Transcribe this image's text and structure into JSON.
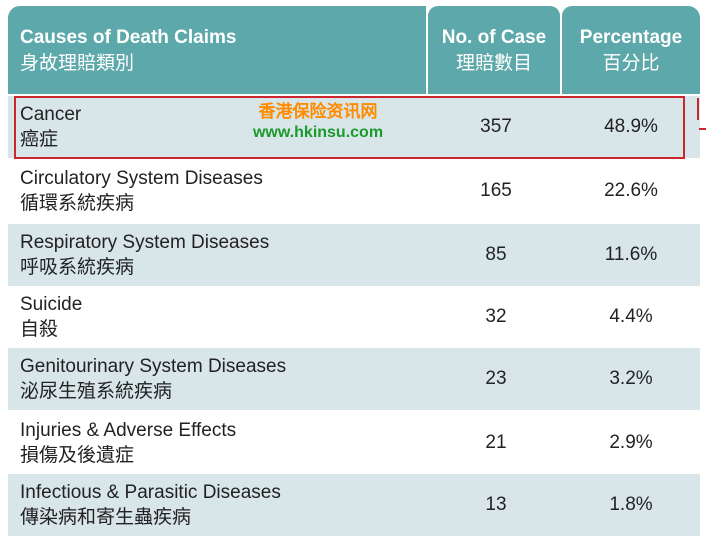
{
  "header": {
    "causes_en": "Causes of Death Claims",
    "causes_zh": "身故理賠類別",
    "cases_en": "No. of Case",
    "cases_zh": "理賠數目",
    "pct_en": "Percentage",
    "pct_zh": "百分比"
  },
  "rows": [
    {
      "name_en": "Cancer",
      "name_zh": "癌症",
      "count": "357",
      "pct": "48.9%"
    },
    {
      "name_en": "Circulatory System Diseases",
      "name_zh": "循環系統疾病",
      "count": "165",
      "pct": "22.6%"
    },
    {
      "name_en": "Respiratory System Diseases",
      "name_zh": "呼吸系統疾病",
      "count": "85",
      "pct": "11.6%"
    },
    {
      "name_en": "Suicide",
      "name_zh": "自殺",
      "count": "32",
      "pct": "4.4%"
    },
    {
      "name_en": "Genitourinary System Diseases",
      "name_zh": "泌尿生殖系統疾病",
      "count": "23",
      "pct": "3.2%"
    },
    {
      "name_en": "Injuries & Adverse Effects",
      "name_zh": "損傷及後遺症",
      "count": "21",
      "pct": "2.9%"
    },
    {
      "name_en": "Infectious & Parasitic Diseases",
      "name_zh": "傳染病和寄生蟲疾病",
      "count": "13",
      "pct": "1.8%"
    }
  ],
  "watermark": {
    "site_name": "香港保险资讯网",
    "url": "www.hkinsu.com"
  },
  "colors": {
    "header_bg": "#5da8aa",
    "row_shaded": "#d8e6ea",
    "highlight": "#c8282d"
  }
}
